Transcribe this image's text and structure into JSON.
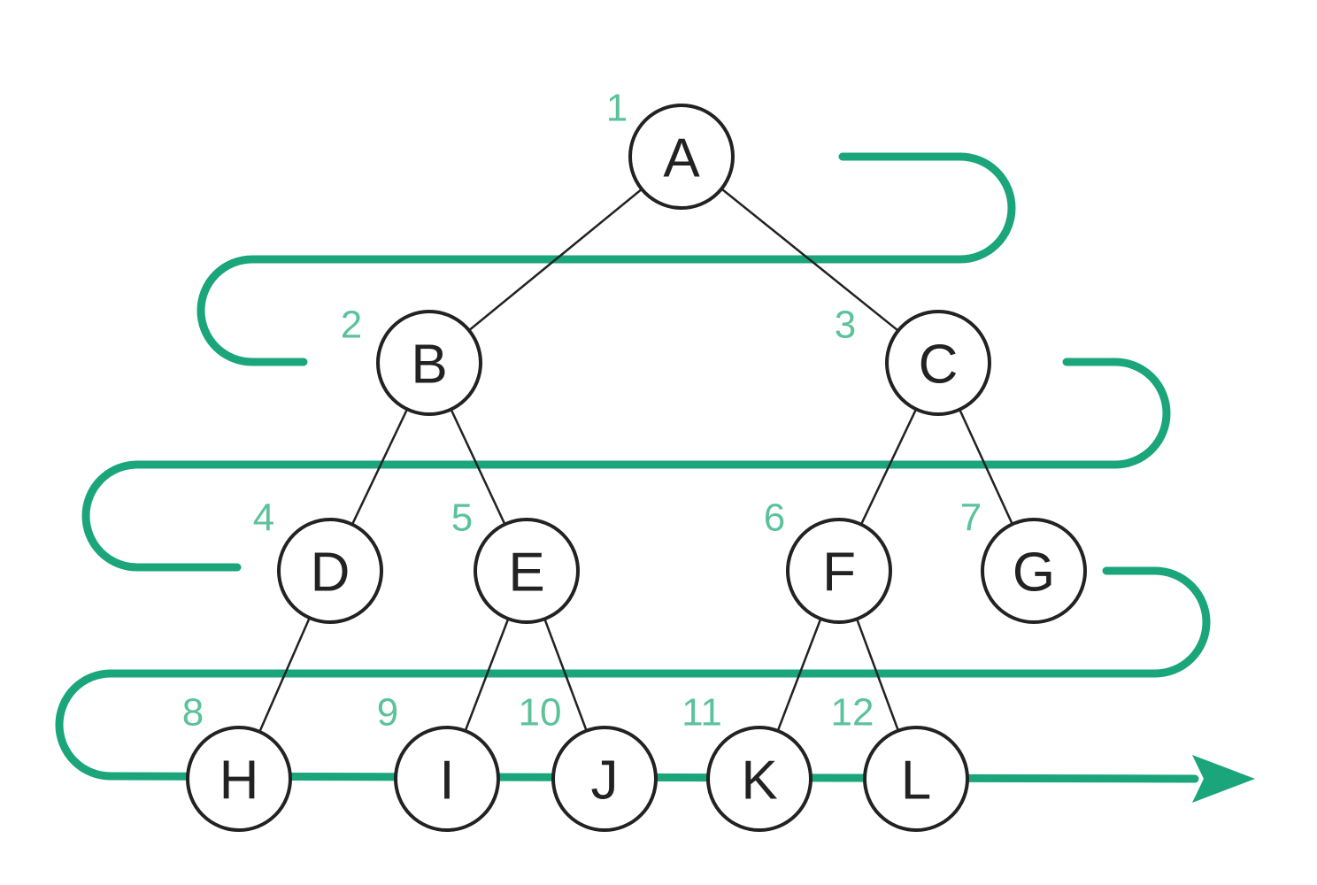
{
  "colors": {
    "path": "#1aa57a",
    "order_numbers": "#5cc29b",
    "node_stroke": "#222222",
    "node_fill": "#ffffff",
    "background": "#ffffff"
  },
  "tree": {
    "nodes": [
      {
        "id": "A",
        "label": "A",
        "order": "1"
      },
      {
        "id": "B",
        "label": "B",
        "order": "2"
      },
      {
        "id": "C",
        "label": "C",
        "order": "3"
      },
      {
        "id": "D",
        "label": "D",
        "order": "4"
      },
      {
        "id": "E",
        "label": "E",
        "order": "5"
      },
      {
        "id": "F",
        "label": "F",
        "order": "6"
      },
      {
        "id": "G",
        "label": "G",
        "order": "7"
      },
      {
        "id": "H",
        "label": "H",
        "order": "8"
      },
      {
        "id": "I",
        "label": "I",
        "order": "9"
      },
      {
        "id": "J",
        "label": "J",
        "order": "10"
      },
      {
        "id": "K",
        "label": "K",
        "order": "11"
      },
      {
        "id": "L",
        "label": "L",
        "order": "12"
      }
    ],
    "edges": [
      {
        "from": "A",
        "to": "B"
      },
      {
        "from": "A",
        "to": "C"
      },
      {
        "from": "B",
        "to": "D"
      },
      {
        "from": "B",
        "to": "E"
      },
      {
        "from": "C",
        "to": "F"
      },
      {
        "from": "C",
        "to": "G"
      },
      {
        "from": "D",
        "to": "H"
      },
      {
        "from": "E",
        "to": "I"
      },
      {
        "from": "E",
        "to": "J"
      },
      {
        "from": "F",
        "to": "K"
      },
      {
        "from": "F",
        "to": "L"
      }
    ]
  },
  "traversal": {
    "type": "level-order",
    "arrow_icon": "arrow-right-icon"
  }
}
